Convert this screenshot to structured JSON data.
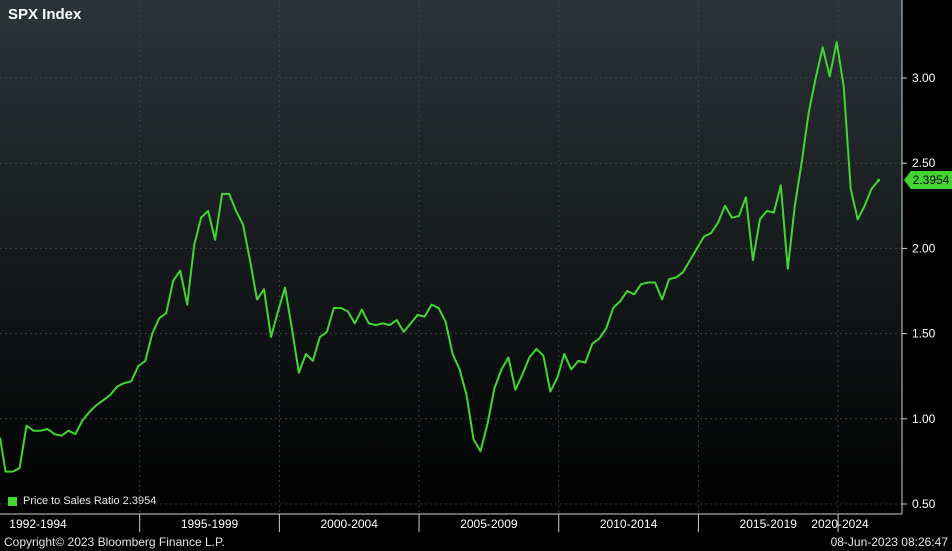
{
  "header": {
    "title": "SPX Index"
  },
  "legend": {
    "label": "Price to Sales Ratio 2.3954"
  },
  "latest_value_label": "2.3954",
  "footer": {
    "copyright": "Copyright© 2023 Bloomberg Finance L.P.",
    "timestamp": "08-Jun-2023 08:26:47"
  },
  "colors": {
    "line": "#43d631",
    "background_top": "#2c3438",
    "background_bottom": "#000000",
    "grid": "#3a4448",
    "text": "#ffffff"
  },
  "chart_data": {
    "type": "line",
    "title": "SPX Index",
    "xlabel": "",
    "ylabel": "",
    "ylim": [
      0.5,
      3.3
    ],
    "xlim": [
      1992.0,
      2023.5
    ],
    "y_ticks": [
      0.5,
      1.0,
      1.5,
      2.0,
      2.5,
      3.0
    ],
    "y_tick_labels": [
      "0.50",
      "1.00",
      "1.50",
      "2.00",
      "2.50",
      "3.00"
    ],
    "x_categories": [
      {
        "label": "1992-1994",
        "start": 1992,
        "end": 1997
      },
      {
        "label": "1995-1999",
        "start": 1997,
        "end": 2002
      },
      {
        "label": "2000-2004",
        "start": 2002,
        "end": 2007
      },
      {
        "label": "2005-2009",
        "start": 2007,
        "end": 2012
      },
      {
        "label": "2010-2014",
        "start": 2012,
        "end": 2017
      },
      {
        "label": "2015-2019",
        "start": 2017,
        "end": 2022
      },
      {
        "label": "2020-2024",
        "start": 2022,
        "end": 2027
      }
    ],
    "grid": true,
    "legend_position": "bottom-left",
    "series": [
      {
        "name": "Price to Sales Ratio",
        "x": [
          1992.0,
          1992.2,
          1992.45,
          1992.7,
          1992.95,
          1993.2,
          1993.45,
          1993.7,
          1993.95,
          1994.2,
          1994.45,
          1994.7,
          1994.95,
          1995.2,
          1995.45,
          1995.7,
          1995.95,
          1996.2,
          1996.45,
          1996.7,
          1996.95,
          1997.2,
          1997.45,
          1997.7,
          1997.95,
          1998.2,
          1998.45,
          1998.7,
          1998.95,
          1999.2,
          1999.45,
          1999.7,
          1999.95,
          2000.2,
          2000.45,
          2000.7,
          2000.95,
          2001.2,
          2001.45,
          2001.7,
          2001.95,
          2002.2,
          2002.45,
          2002.7,
          2002.95,
          2003.2,
          2003.45,
          2003.7,
          2003.95,
          2004.2,
          2004.45,
          2004.7,
          2004.95,
          2005.2,
          2005.45,
          2005.7,
          2005.95,
          2006.2,
          2006.45,
          2006.7,
          2006.95,
          2007.2,
          2007.45,
          2007.7,
          2007.95,
          2008.2,
          2008.45,
          2008.7,
          2008.95,
          2009.2,
          2009.45,
          2009.7,
          2009.95,
          2010.2,
          2010.45,
          2010.7,
          2010.95,
          2011.2,
          2011.45,
          2011.7,
          2011.95,
          2012.2,
          2012.45,
          2012.7,
          2012.95,
          2013.2,
          2013.45,
          2013.7,
          2013.95,
          2014.2,
          2014.45,
          2014.7,
          2014.95,
          2015.2,
          2015.45,
          2015.7,
          2015.95,
          2016.2,
          2016.45,
          2016.7,
          2016.95,
          2017.2,
          2017.45,
          2017.7,
          2017.95,
          2018.2,
          2018.45,
          2018.7,
          2018.95,
          2019.2,
          2019.45,
          2019.7,
          2019.95,
          2020.2,
          2020.45,
          2020.7,
          2020.95,
          2021.2,
          2021.45,
          2021.7,
          2021.95,
          2022.2,
          2022.45,
          2022.7,
          2022.95,
          2023.2,
          2023.45
        ],
        "values": [
          0.89,
          0.69,
          0.69,
          0.71,
          0.96,
          0.93,
          0.93,
          0.94,
          0.91,
          0.9,
          0.93,
          0.91,
          0.99,
          1.04,
          1.08,
          1.11,
          1.14,
          1.19,
          1.21,
          1.22,
          1.31,
          1.34,
          1.5,
          1.59,
          1.62,
          1.81,
          1.87,
          1.67,
          2.02,
          2.18,
          2.22,
          2.05,
          2.32,
          2.32,
          2.22,
          2.14,
          1.93,
          1.7,
          1.76,
          1.48,
          1.63,
          1.77,
          1.53,
          1.27,
          1.38,
          1.34,
          1.48,
          1.51,
          1.65,
          1.65,
          1.63,
          1.56,
          1.64,
          1.56,
          1.55,
          1.56,
          1.55,
          1.58,
          1.51,
          1.56,
          1.61,
          1.6,
          1.67,
          1.65,
          1.57,
          1.38,
          1.29,
          1.14,
          0.88,
          0.81,
          0.97,
          1.18,
          1.29,
          1.36,
          1.17,
          1.26,
          1.36,
          1.41,
          1.37,
          1.16,
          1.24,
          1.38,
          1.29,
          1.34,
          1.33,
          1.44,
          1.47,
          1.53,
          1.65,
          1.69,
          1.75,
          1.73,
          1.79,
          1.8,
          1.8,
          1.7,
          1.82,
          1.83,
          1.86,
          1.93,
          2.0,
          2.07,
          2.09,
          2.15,
          2.25,
          2.18,
          2.19,
          2.3,
          1.93,
          2.17,
          2.22,
          2.21,
          2.37,
          1.88,
          2.25,
          2.51,
          2.8,
          3.0,
          3.18,
          3.01,
          3.21,
          2.95,
          2.35,
          2.17,
          2.25,
          2.35,
          2.4
        ]
      }
    ]
  }
}
